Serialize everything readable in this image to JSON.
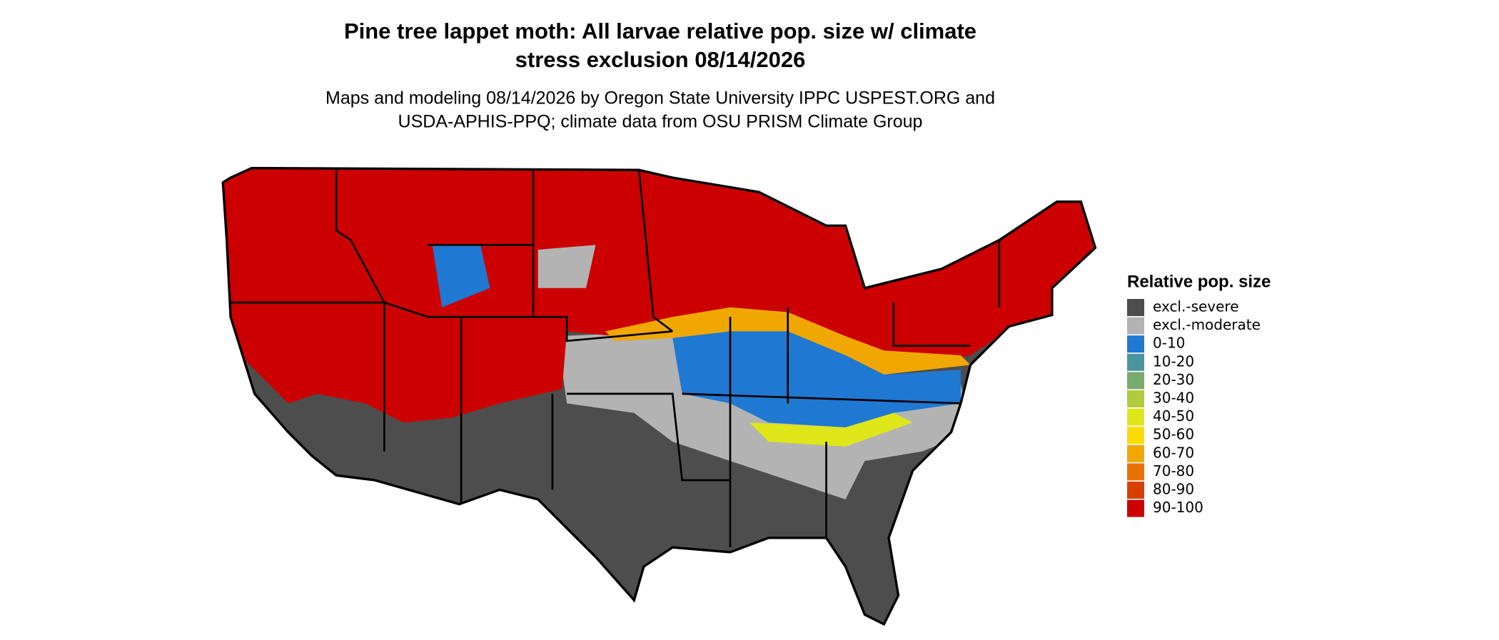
{
  "title": [
    "Pine tree lappet moth: All larvae relative pop. size w/ climate",
    "stress exclusion 08/14/2026"
  ],
  "subtitle": [
    "Maps and modeling 08/14/2026 by Oregon State University IPPC USPEST.ORG and",
    "USDA-APHIS-PPQ; climate data from OSU PRISM Climate Group"
  ],
  "legend": {
    "title": "Relative pop. size",
    "items": [
      {
        "label": "excl.-severe",
        "color": "#4d4d4d"
      },
      {
        "label": "excl.-moderate",
        "color": "#b3b3b3"
      },
      {
        "label": "0-10",
        "color": "#1f78d1"
      },
      {
        "label": "10-20",
        "color": "#4a95a0"
      },
      {
        "label": "20-30",
        "color": "#7aaa6e"
      },
      {
        "label": "30-40",
        "color": "#b0cc3c"
      },
      {
        "label": "40-50",
        "color": "#dfe61a"
      },
      {
        "label": "50-60",
        "color": "#fadc00"
      },
      {
        "label": "60-70",
        "color": "#f0a800"
      },
      {
        "label": "70-80",
        "color": "#e67300"
      },
      {
        "label": "80-90",
        "color": "#d94000"
      },
      {
        "label": "90-100",
        "color": "#cc0000"
      }
    ]
  }
}
